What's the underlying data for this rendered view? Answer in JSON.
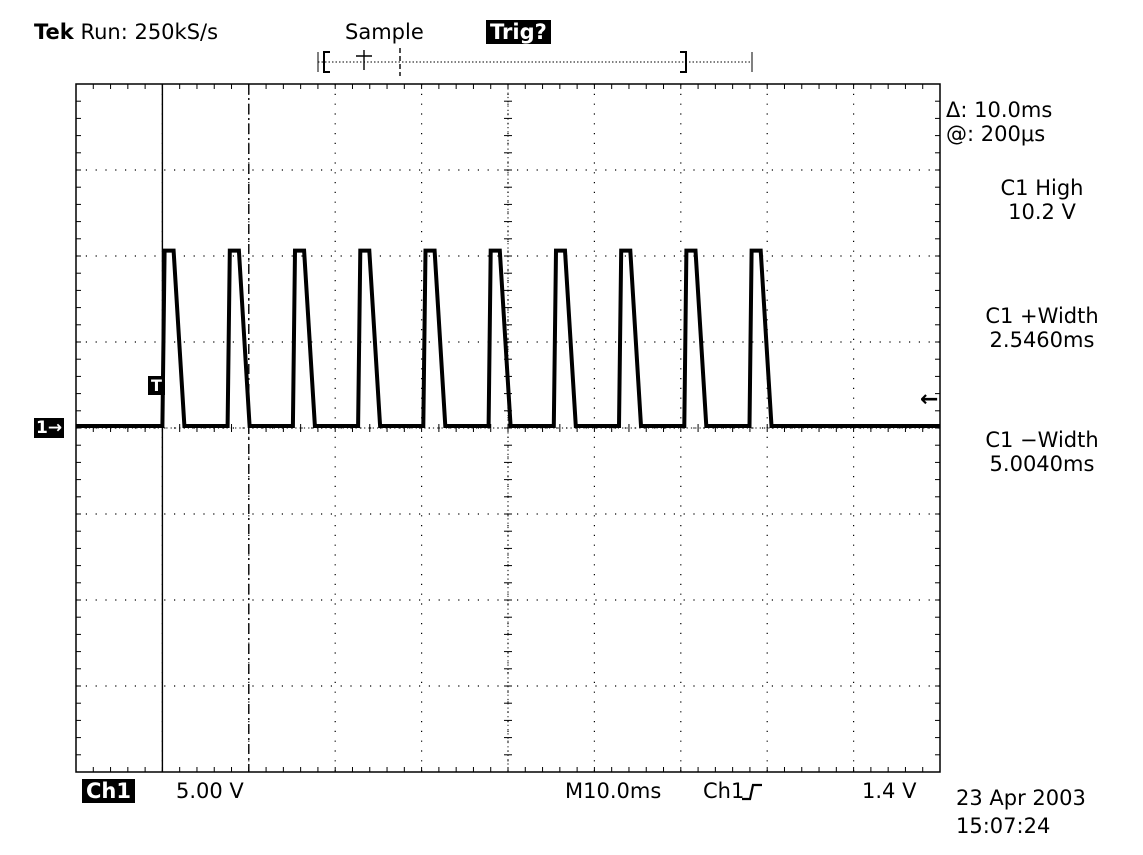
{
  "header": {
    "brand": "Tek",
    "run_status": "Run: 250kS/s",
    "acq_mode": "Sample",
    "trigger_status": "Trig?"
  },
  "readouts": {
    "delta_label": "Δ: 10.0ms",
    "at_label": "@: 200μs",
    "measurements": [
      {
        "name": "C1 High",
        "value": "10.2 V"
      },
      {
        "name": "C1 +Width",
        "value": "2.5460ms"
      },
      {
        "name": "C1 −Width",
        "value": "5.0040ms"
      }
    ]
  },
  "markers": {
    "channel_marker": "1→",
    "trigger_marker": "T",
    "trigger_level_arrow": "←"
  },
  "footer": {
    "channel": "Ch1",
    "volts_per_div": "5.00 V",
    "timebase": "M10.0ms",
    "trigger_source": "Ch1",
    "trigger_slope_icon": "rising-edge-icon",
    "trigger_level": "1.4 V",
    "date": "23 Apr 2003",
    "time": "15:07:24"
  },
  "colors": {
    "trace": "#000000",
    "graticule": "#000000",
    "background": "#ffffff"
  },
  "chart_data": {
    "type": "line",
    "title": "",
    "xlabel": "",
    "ylabel": "",
    "grid": true,
    "x_divisions": 10,
    "y_divisions": 8,
    "x_unit_per_div": "10.0ms",
    "y_unit_per_div": "5.00 V",
    "xlim_ms": [
      0,
      100
    ],
    "ylim_div_from_ground": [
      -4,
      4
    ],
    "baseline_v": 0,
    "high_v": 10.2,
    "pulse_count": 10,
    "first_rise_ms": 10.0,
    "period_ms": 7.55,
    "positive_width_ms": 2.546,
    "negative_width_ms": 5.004,
    "cursor_1_ms": 10.0,
    "cursor_2_ms": 20.0
  }
}
